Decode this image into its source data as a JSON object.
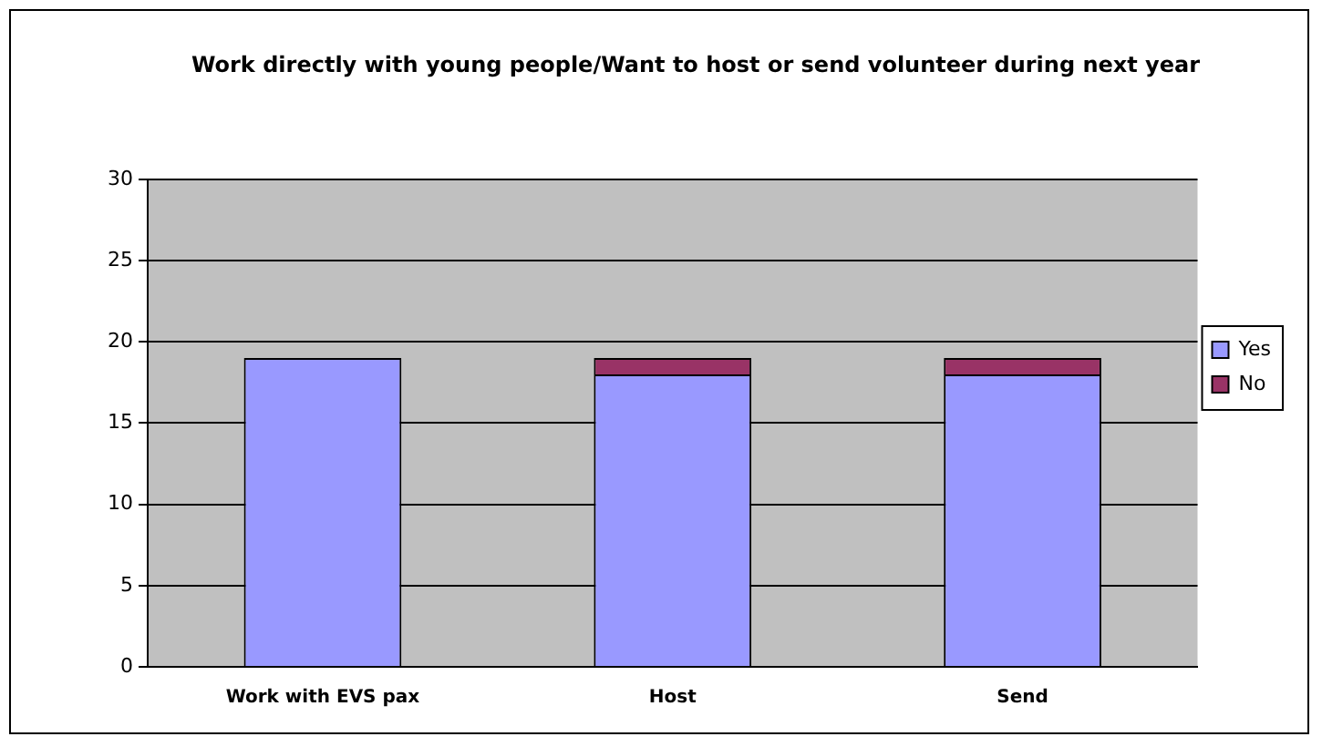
{
  "chart_data": {
    "type": "bar",
    "title": "Work directly with young people/Want to host or send volunteer during next year",
    "categories": [
      "Work with EVS pax",
      "Host",
      "Send"
    ],
    "stacked": true,
    "series": [
      {
        "name": "Yes",
        "color": "#9999ff",
        "values": [
          19,
          18,
          18
        ]
      },
      {
        "name": "No",
        "color": "#993366",
        "values": [
          0,
          1,
          1
        ]
      }
    ],
    "ylim": [
      0,
      30
    ],
    "yticks": [
      0,
      5,
      10,
      15,
      20,
      25,
      30
    ],
    "grid": "y",
    "legend": "right"
  }
}
